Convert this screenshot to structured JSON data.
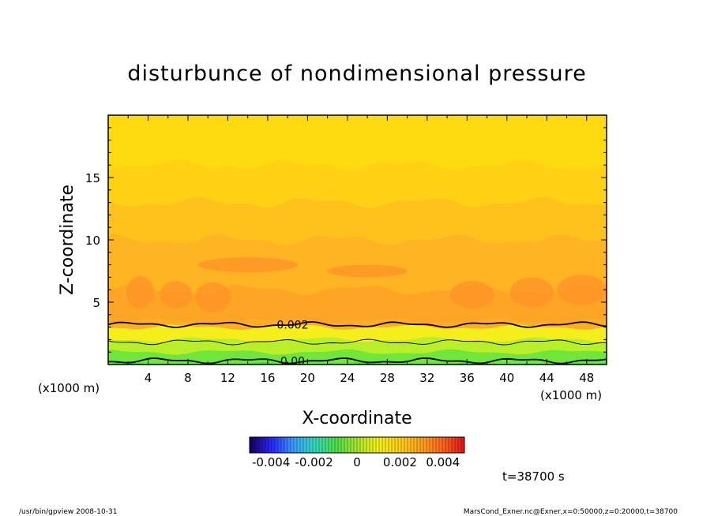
{
  "chart_data": {
    "type": "heatmap",
    "title": "disturbunce of nondimensional pressure",
    "xlabel": "X-coordinate",
    "ylabel": "Z-coordinate",
    "x_unit": "(x1000 m)",
    "y_unit": "(x1000 m)",
    "xlim": [
      0,
      50
    ],
    "ylim": [
      0,
      20
    ],
    "x_ticks": [
      4,
      8,
      12,
      16,
      20,
      24,
      28,
      32,
      36,
      40,
      44,
      48
    ],
    "y_ticks": [
      5,
      10,
      15
    ],
    "colorbar": {
      "ticks": [
        "-0.004",
        "-0.002",
        "0",
        "0.002",
        "0.004"
      ],
      "range": [
        -0.005,
        0.005
      ],
      "colors": [
        "#1a0066",
        "#2a2aff",
        "#3c9cff",
        "#33d9c0",
        "#4de04d",
        "#a8e62b",
        "#f2f21a",
        "#ffd21a",
        "#ffa51a",
        "#ff6a1a",
        "#e61a1a"
      ]
    },
    "field_levels": [
      {
        "z": 0.0,
        "value": 0.0005,
        "color": "#3fd93f"
      },
      {
        "z": 1.0,
        "value": 0.001,
        "color": "#6ee63a"
      },
      {
        "z": 2.0,
        "value": 0.0015,
        "color": "#b8ef2a"
      },
      {
        "z": 3.0,
        "value": 0.002,
        "color": "#f6ee1a"
      },
      {
        "z": 3.5,
        "value": 0.0032,
        "color": "#ffae24"
      },
      {
        "z": 6.0,
        "value": 0.0034,
        "color": "#ffa526"
      },
      {
        "z": 10.0,
        "value": 0.0031,
        "color": "#ffb423"
      },
      {
        "z": 13.0,
        "value": 0.0028,
        "color": "#ffc21d"
      },
      {
        "z": 16.0,
        "value": 0.0025,
        "color": "#ffd115"
      },
      {
        "z": 20.0,
        "value": 0.0023,
        "color": "#ffda10"
      }
    ],
    "contours": [
      {
        "level": "0.002",
        "z_mean": 3.2,
        "label": "0.002"
      },
      {
        "level": "0.0015",
        "z_mean": 1.8,
        "label": ""
      },
      {
        "level": "0.00",
        "z_mean": 0.3,
        "label": "0.00"
      }
    ],
    "annotations": {
      "time": "t=38700 s",
      "footer_left": "/usr/bin/gpview   2008-10-31",
      "footer_right": "MarsCond_Exner.nc@Exner,x=0:50000,z=0:20000,t=38700"
    }
  }
}
